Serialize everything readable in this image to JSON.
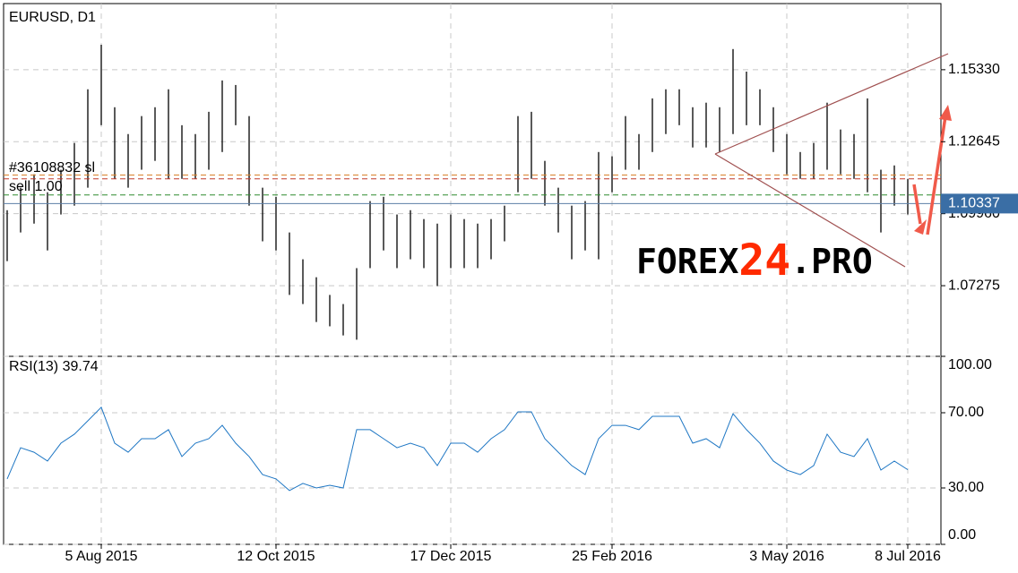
{
  "chart_data": [
    {
      "type": "ohlc",
      "title": "EURUSD, D1",
      "categories": [
        null,
        null,
        null,
        null,
        null,
        null,
        null,
        "5 Aug 2015",
        null,
        null,
        null,
        null,
        null,
        null,
        null,
        null,
        null,
        null,
        null,
        null,
        "12 Oct 2015",
        null,
        null,
        null,
        null,
        null,
        null,
        null,
        null,
        null,
        null,
        null,
        null,
        "17 Dec 2015",
        null,
        null,
        null,
        null,
        null,
        null,
        null,
        null,
        null,
        null,
        null,
        "25 Feb 2016",
        null,
        null,
        null,
        null,
        null,
        null,
        null,
        null,
        null,
        null,
        null,
        null,
        "3 May 2016",
        null,
        null,
        null,
        null,
        null,
        null,
        null,
        null,
        "8 Jul 2016"
      ],
      "high": [
        1.1009,
        1.1093,
        1.1143,
        1.1076,
        1.116,
        1.126,
        1.146,
        1.1626,
        1.1393,
        1.1293,
        1.136,
        1.1393,
        1.146,
        1.1326,
        1.1293,
        1.1376,
        1.1493,
        1.1476,
        1.136,
        1.1093,
        1.1059,
        1.0926,
        1.0826,
        1.0759,
        1.0693,
        1.0659,
        1.0793,
        1.1043,
        1.1059,
        1.0993,
        1.1009,
        1.0976,
        1.0959,
        1.0993,
        1.0976,
        1.0959,
        1.0976,
        1.1026,
        1.136,
        1.1376,
        1.1193,
        1.1093,
        1.1026,
        1.1043,
        1.1226,
        1.121,
        1.136,
        1.1293,
        1.1426,
        1.146,
        1.146,
        1.1393,
        1.141,
        1.1393,
        1.161,
        1.1526,
        1.146,
        1.1393,
        1.1293,
        1.1226,
        1.126,
        1.141,
        1.131,
        1.1293,
        1.1426,
        1.116,
        1.1176,
        1.1126
      ],
      "low": [
        1.0819,
        1.0926,
        1.0959,
        1.0859,
        1.0993,
        1.1026,
        1.1093,
        1.1326,
        1.1126,
        1.1093,
        1.116,
        1.1193,
        1.1126,
        1.1126,
        1.1126,
        1.116,
        1.1226,
        1.1326,
        1.1026,
        1.0893,
        1.0859,
        1.0693,
        1.0659,
        1.0592,
        1.0576,
        1.0542,
        1.0526,
        1.0793,
        1.0859,
        1.0793,
        1.0826,
        1.0793,
        1.0726,
        1.0793,
        1.0793,
        1.0793,
        1.0826,
        1.0893,
        1.1076,
        1.1126,
        1.1026,
        1.0926,
        1.0826,
        1.0859,
        1.0826,
        1.1076,
        1.116,
        1.116,
        1.1226,
        1.1293,
        1.1326,
        1.1243,
        1.1243,
        1.1226,
        1.1293,
        1.1326,
        1.1326,
        1.1226,
        1.1143,
        1.1126,
        1.1126,
        1.116,
        1.1143,
        1.1126,
        1.1076,
        1.0926,
        1.1026,
        1.0993
      ],
      "color": "#000000",
      "ylim": [
        1.0464,
        1.1793
      ],
      "yticks": [
        {
          "value": 1.1533,
          "label": "1.15330"
        },
        1.12645,
        {
          "value": 1.0996,
          "label": "1.09960"
        },
        1.07275
      ],
      "grid": true,
      "current_price": 1.10337,
      "levels": [
        {
          "value": 1.114,
          "color": "#d9822b"
        },
        {
          "value": 1.1126,
          "color": "#c0392b"
        },
        {
          "value": 1.1066,
          "color": "#2e8b2e"
        }
      ],
      "order_labels": [
        "#36108832 sl",
        "sell 1.00"
      ],
      "watermark": [
        "FOREX",
        "24",
        ".PRO"
      ]
    },
    {
      "type": "line",
      "title": "RSI(13) 39.74",
      "values": [
        34.8,
        51.4,
        49.0,
        44.3,
        53.8,
        58.6,
        65.7,
        72.9,
        53.8,
        49.0,
        56.2,
        56.2,
        61.0,
        46.7,
        53.8,
        56.2,
        63.3,
        53.8,
        46.7,
        37.1,
        34.8,
        28.6,
        32.4,
        30.0,
        31.4,
        30.0,
        61.0,
        61.0,
        56.2,
        51.4,
        53.8,
        51.4,
        41.9,
        53.8,
        53.8,
        49.0,
        56.2,
        61.0,
        70.5,
        70.5,
        56.2,
        49.0,
        41.9,
        37.1,
        56.2,
        63.3,
        63.3,
        61.0,
        68.1,
        68.1,
        68.1,
        53.8,
        56.2,
        51.4,
        69.5,
        61.0,
        53.8,
        44.3,
        39.5,
        37.1,
        41.9,
        58.6,
        49.0,
        46.7,
        56.2,
        39.5,
        44.3,
        39.7
      ],
      "color": "#1f77c4",
      "ylim": [
        0,
        100
      ],
      "yticks": [
        {
          "value": 0,
          "label": "0.00"
        },
        {
          "value": 30,
          "label": "30.00"
        },
        {
          "value": 70,
          "label": "70.00"
        },
        {
          "value": 100,
          "label": "100.00"
        }
      ],
      "grid": true
    }
  ]
}
